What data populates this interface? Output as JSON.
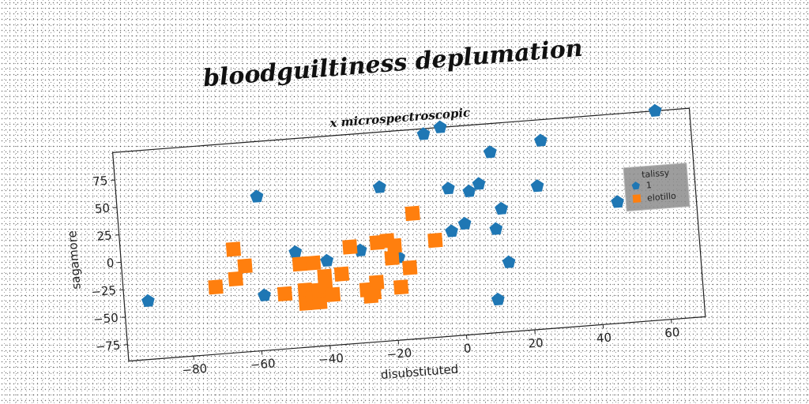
{
  "chart_data": {
    "type": "scatter",
    "title": "bloodguiltiness deplumation",
    "subtitle": "x microspectroscopic",
    "xlabel": "disubstituted",
    "ylabel": "sagamore",
    "xlim": [
      -99,
      70
    ],
    "ylim": [
      -90,
      100
    ],
    "xticks": [
      -80,
      -60,
      -40,
      -20,
      0,
      20,
      40,
      60
    ],
    "yticks": [
      -75,
      -50,
      -25,
      0,
      25,
      50,
      75
    ],
    "grid": false,
    "legend": {
      "title": "talissy",
      "placement": "right"
    },
    "series": [
      {
        "name": "1",
        "marker": "pentagon",
        "color": "#1f77b4",
        "points": [
          [
            -92,
            -37
          ],
          [
            -58,
            50
          ],
          [
            -58,
            -40
          ],
          [
            -48,
            -3
          ],
          [
            -39,
            -13
          ],
          [
            -29,
            -6
          ],
          [
            -22,
            50
          ],
          [
            -18,
            -15
          ],
          [
            -8,
            95
          ],
          [
            -3,
            100
          ],
          [
            -2,
            44
          ],
          [
            -2,
            5
          ],
          [
            2,
            11
          ],
          [
            4,
            40
          ],
          [
            7,
            46
          ],
          [
            10,
            -60
          ],
          [
            11,
            74
          ],
          [
            11,
            4
          ],
          [
            13,
            22
          ],
          [
            14,
            -27
          ],
          [
            24,
            40
          ],
          [
            26,
            81
          ],
          [
            47,
            20
          ],
          [
            60,
            100
          ]
        ]
      },
      {
        "name": "elotillo",
        "marker": "square",
        "color": "#ff7f0e",
        "points": [
          [
            -72,
            -29
          ],
          [
            -66,
            4
          ],
          [
            -66,
            -23
          ],
          [
            -63,
            -12
          ],
          [
            -52,
            -40
          ],
          [
            -47,
            -14
          ],
          [
            -46,
            -38
          ],
          [
            -46,
            -50
          ],
          [
            -44,
            -46
          ],
          [
            -43,
            -14
          ],
          [
            -42,
            -50
          ],
          [
            -42,
            -39
          ],
          [
            -40,
            -27
          ],
          [
            -40,
            -36
          ],
          [
            -38,
            -44
          ],
          [
            -35,
            -26
          ],
          [
            -32,
            -2
          ],
          [
            -28,
            -42
          ],
          [
            -27,
            -48
          ],
          [
            -26,
            -45
          ],
          [
            -25,
            -36
          ],
          [
            -24,
            0
          ],
          [
            -21,
            1
          ],
          [
            -20,
            -15
          ],
          [
            -19,
            -4
          ],
          [
            -18,
            -42
          ],
          [
            -15,
            -25
          ],
          [
            -13,
            24
          ],
          [
            -7,
            -2
          ]
        ]
      }
    ]
  }
}
